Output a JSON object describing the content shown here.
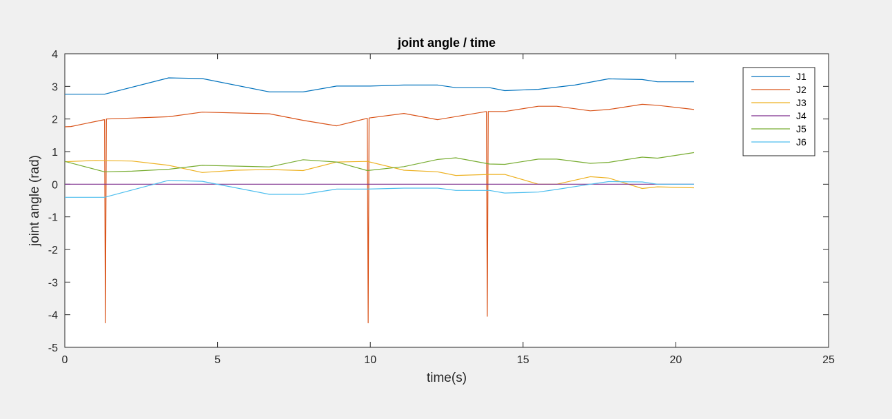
{
  "chart_data": {
    "type": "line",
    "title": "joint angle / time",
    "xlabel": "time(s)",
    "ylabel": "joint angle (rad)",
    "xlim": [
      0,
      25
    ],
    "ylim": [
      -5,
      4
    ],
    "xticks": [
      0,
      5,
      10,
      15,
      20,
      25
    ],
    "yticks": [
      4,
      3,
      2,
      1,
      0,
      -1,
      -2,
      -3,
      -4,
      -5
    ],
    "grid": false,
    "legend_position": "top-right",
    "series": [
      {
        "name": "J1",
        "color": "#0072bd",
        "x": [
          0,
          1.3,
          3.4,
          4.5,
          6.7,
          7.8,
          8.9,
          10,
          11.1,
          12.2,
          12.8,
          13.9,
          14.4,
          15.5,
          16.7,
          17.8,
          18.9,
          19.4,
          20.6
        ],
        "y": [
          2.76,
          2.76,
          3.26,
          3.24,
          2.83,
          2.83,
          3.01,
          3.01,
          3.04,
          3.04,
          2.96,
          2.96,
          2.87,
          2.91,
          3.04,
          3.23,
          3.21,
          3.14,
          3.14
        ]
      },
      {
        "name": "J2",
        "color": "#d95319",
        "x": [
          0,
          0.2,
          1.3,
          1.33,
          1.36,
          3.4,
          4.5,
          6.7,
          7.8,
          8.9,
          9.9,
          9.93,
          9.96,
          11.1,
          12.2,
          13.8,
          13.83,
          13.86,
          14.4,
          15.5,
          16.1,
          17.2,
          17.8,
          18.9,
          19.4,
          20.6
        ],
        "y": [
          1.76,
          1.77,
          1.98,
          -4.25,
          2.0,
          2.07,
          2.21,
          2.16,
          1.96,
          1.79,
          2.02,
          -4.25,
          2.03,
          2.17,
          1.98,
          2.23,
          -4.05,
          2.23,
          2.23,
          2.39,
          2.39,
          2.25,
          2.29,
          2.45,
          2.42,
          2.29
        ]
      },
      {
        "name": "J3",
        "color": "#edb120",
        "x": [
          0,
          1,
          2.2,
          3.4,
          4.5,
          5.6,
          6.7,
          7.8,
          8.9,
          9.9,
          11.1,
          12.2,
          12.8,
          13.9,
          14.4,
          15.5,
          16.1,
          17.2,
          17.8,
          18.9,
          19.4,
          20.6
        ],
        "y": [
          0.69,
          0.73,
          0.71,
          0.58,
          0.36,
          0.43,
          0.45,
          0.42,
          0.68,
          0.7,
          0.43,
          0.38,
          0.27,
          0.3,
          0.3,
          0.0,
          0.0,
          0.23,
          0.19,
          -0.13,
          -0.08,
          -0.11
        ]
      },
      {
        "name": "J4",
        "color": "#7e2f8e",
        "x": [
          0,
          20.6
        ],
        "y": [
          0,
          0
        ]
      },
      {
        "name": "J5",
        "color": "#77ac30",
        "x": [
          0,
          1.3,
          2.2,
          3.4,
          4.5,
          6.7,
          7.8,
          8.9,
          9.9,
          11.1,
          12.2,
          12.8,
          13.9,
          14.4,
          15.5,
          16.1,
          17.2,
          17.8,
          18.9,
          19.4,
          20.6
        ],
        "y": [
          0.7,
          0.38,
          0.4,
          0.46,
          0.58,
          0.53,
          0.75,
          0.68,
          0.42,
          0.54,
          0.76,
          0.81,
          0.62,
          0.61,
          0.77,
          0.77,
          0.64,
          0.67,
          0.83,
          0.8,
          0.97
        ]
      },
      {
        "name": "J6",
        "color": "#4dbeee",
        "x": [
          0,
          1.3,
          3.4,
          4.5,
          6.7,
          7.8,
          8.9,
          9.9,
          11.1,
          12.2,
          12.8,
          13.9,
          14.4,
          15.5,
          16.1,
          17.2,
          17.8,
          18.9,
          19.4,
          20.6
        ],
        "y": [
          -0.4,
          -0.4,
          0.12,
          0.09,
          -0.31,
          -0.31,
          -0.15,
          -0.15,
          -0.12,
          -0.12,
          -0.19,
          -0.19,
          -0.27,
          -0.24,
          -0.16,
          0.0,
          0.08,
          0.07,
          0.0,
          0.0
        ]
      }
    ]
  }
}
